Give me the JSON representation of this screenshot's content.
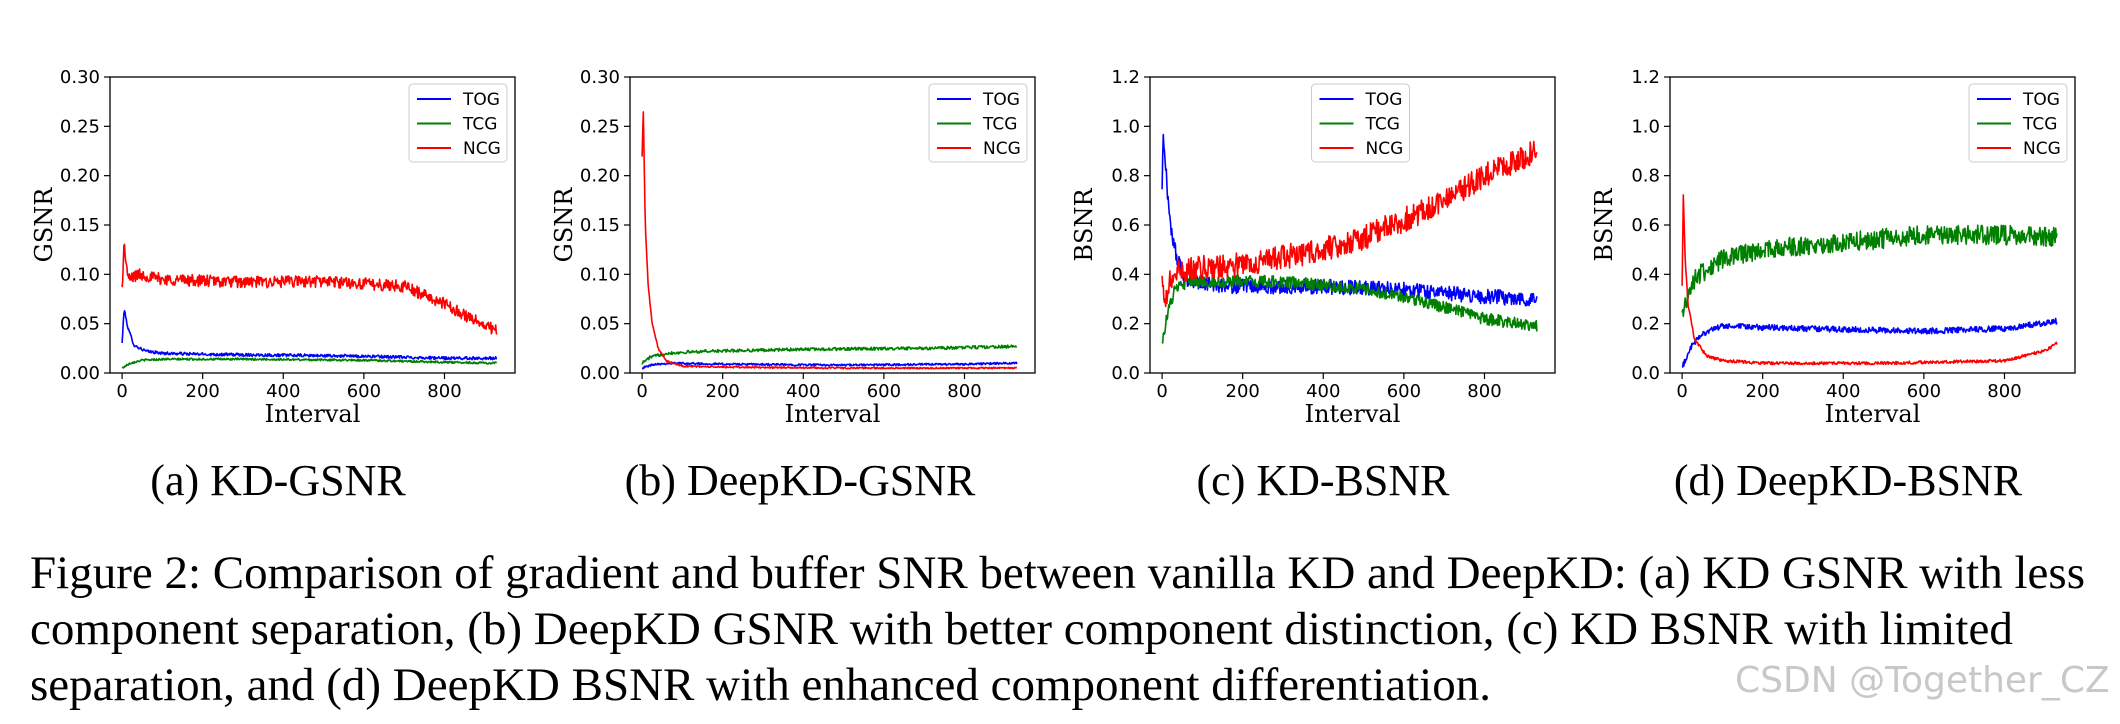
{
  "chart_data": [
    {
      "type": "line",
      "subcaption": "(a) KD-GSNR",
      "xlabel": "Interval",
      "ylabel": "GSNR",
      "xlim": [
        -30,
        975
      ],
      "ylim": [
        0,
        0.3
      ],
      "xticks": [
        0,
        200,
        400,
        600,
        800
      ],
      "xtick_labels": [
        "0",
        "200",
        "400",
        "600",
        "800"
      ],
      "yticks": [
        0,
        0.05,
        0.1,
        0.15,
        0.2,
        0.25,
        0.3
      ],
      "ytick_labels": [
        "0.00",
        "0.05",
        "0.10",
        "0.15",
        "0.20",
        "0.25",
        "0.30"
      ],
      "legend": "upper right",
      "series": [
        {
          "name": "TOG",
          "color": "#0000ff",
          "noise": 0.0015,
          "x": [
            0,
            5,
            15,
            30,
            60,
            100,
            200,
            400,
            600,
            800,
            930
          ],
          "y": [
            0.03,
            0.065,
            0.045,
            0.028,
            0.022,
            0.02,
            0.019,
            0.018,
            0.017,
            0.015,
            0.015
          ]
        },
        {
          "name": "TCG",
          "color": "#008000",
          "noise": 0.001,
          "x": [
            0,
            20,
            50,
            100,
            300,
            600,
            800,
            930
          ],
          "y": [
            0.005,
            0.01,
            0.013,
            0.014,
            0.014,
            0.013,
            0.011,
            0.01
          ]
        },
        {
          "name": "NCG",
          "color": "#ff0000",
          "noise": 0.006,
          "x": [
            0,
            5,
            15,
            40,
            100,
            300,
            500,
            700,
            800,
            900,
            930
          ],
          "y": [
            0.085,
            0.13,
            0.095,
            0.1,
            0.095,
            0.092,
            0.093,
            0.088,
            0.07,
            0.048,
            0.043
          ]
        }
      ]
    },
    {
      "type": "line",
      "subcaption": "(b) DeepKD-GSNR",
      "xlabel": "Interval",
      "ylabel": "GSNR",
      "xlim": [
        -30,
        975
      ],
      "ylim": [
        0,
        0.3
      ],
      "xticks": [
        0,
        200,
        400,
        600,
        800
      ],
      "xtick_labels": [
        "0",
        "200",
        "400",
        "600",
        "800"
      ],
      "yticks": [
        0,
        0.05,
        0.1,
        0.15,
        0.2,
        0.25,
        0.3
      ],
      "ytick_labels": [
        "0.00",
        "0.05",
        "0.10",
        "0.15",
        "0.20",
        "0.25",
        "0.30"
      ],
      "legend": "upper right",
      "series": [
        {
          "name": "TOG",
          "color": "#0000ff",
          "noise": 0.001,
          "x": [
            0,
            30,
            80,
            200,
            500,
            800,
            930
          ],
          "y": [
            0.005,
            0.009,
            0.01,
            0.009,
            0.008,
            0.009,
            0.01
          ]
        },
        {
          "name": "TCG",
          "color": "#008000",
          "noise": 0.0015,
          "x": [
            0,
            20,
            60,
            150,
            400,
            700,
            930
          ],
          "y": [
            0.01,
            0.016,
            0.02,
            0.022,
            0.024,
            0.025,
            0.027
          ]
        },
        {
          "name": "NCG",
          "color": "#ff0000",
          "noise": 0.0008,
          "x": [
            0,
            3,
            8,
            15,
            25,
            40,
            60,
            100,
            200,
            500,
            800,
            930
          ],
          "y": [
            0.22,
            0.265,
            0.15,
            0.09,
            0.05,
            0.025,
            0.012,
            0.007,
            0.006,
            0.005,
            0.005,
            0.005
          ]
        }
      ]
    },
    {
      "type": "line",
      "subcaption": "(c) KD-BSNR",
      "xlabel": "Interval",
      "ylabel": "BSNR",
      "xlim": [
        -30,
        975
      ],
      "ylim": [
        0,
        1.2
      ],
      "xticks": [
        0,
        200,
        400,
        600,
        800
      ],
      "xtick_labels": [
        "0",
        "200",
        "400",
        "600",
        "800"
      ],
      "yticks": [
        0,
        0.2,
        0.4,
        0.6,
        0.8,
        1.0,
        1.2
      ],
      "ytick_labels": [
        "0.0",
        "0.2",
        "0.4",
        "0.6",
        "0.8",
        "1.0",
        "1.2"
      ],
      "legend": "upper center",
      "series": [
        {
          "name": "TOG",
          "color": "#0000ff",
          "noise": 0.03,
          "x": [
            0,
            3,
            8,
            15,
            25,
            40,
            60,
            100,
            200,
            400,
            600,
            800,
            930
          ],
          "y": [
            0.75,
            0.98,
            0.85,
            0.7,
            0.55,
            0.45,
            0.38,
            0.36,
            0.35,
            0.35,
            0.34,
            0.31,
            0.3
          ]
        },
        {
          "name": "TCG",
          "color": "#008000",
          "noise": 0.025,
          "x": [
            0,
            15,
            30,
            60,
            100,
            300,
            500,
            650,
            800,
            930
          ],
          "y": [
            0.13,
            0.25,
            0.33,
            0.37,
            0.37,
            0.37,
            0.34,
            0.29,
            0.22,
            0.19
          ]
        },
        {
          "name": "NCG",
          "color": "#ff0000",
          "noise": 0.05,
          "x": [
            0,
            5,
            15,
            30,
            60,
            200,
            400,
            500,
            600,
            700,
            800,
            900,
            930
          ],
          "y": [
            0.4,
            0.25,
            0.35,
            0.4,
            0.42,
            0.44,
            0.5,
            0.55,
            0.62,
            0.7,
            0.8,
            0.88,
            0.9
          ]
        }
      ]
    },
    {
      "type": "line",
      "subcaption": "(d) DeepKD-BSNR",
      "xlabel": "Interval",
      "ylabel": "BSNR",
      "xlim": [
        -30,
        975
      ],
      "ylim": [
        0,
        1.2
      ],
      "xticks": [
        0,
        200,
        400,
        600,
        800
      ],
      "xtick_labels": [
        "0",
        "200",
        "400",
        "600",
        "800"
      ],
      "yticks": [
        0,
        0.2,
        0.4,
        0.6,
        0.8,
        1.0,
        1.2
      ],
      "ytick_labels": [
        "0.0",
        "0.2",
        "0.4",
        "0.6",
        "0.8",
        "1.0",
        "1.2"
      ],
      "legend": "upper right",
      "series": [
        {
          "name": "TOG",
          "color": "#0000ff",
          "noise": 0.012,
          "x": [
            0,
            20,
            50,
            100,
            300,
            600,
            800,
            930
          ],
          "y": [
            0.02,
            0.1,
            0.16,
            0.19,
            0.18,
            0.17,
            0.18,
            0.21
          ]
        },
        {
          "name": "TCG",
          "color": "#008000",
          "noise": 0.04,
          "x": [
            0,
            10,
            30,
            60,
            100,
            200,
            400,
            600,
            800,
            930
          ],
          "y": [
            0.22,
            0.3,
            0.38,
            0.42,
            0.46,
            0.5,
            0.53,
            0.56,
            0.56,
            0.55
          ]
        },
        {
          "name": "NCG",
          "color": "#ff0000",
          "noise": 0.006,
          "x": [
            0,
            3,
            8,
            15,
            30,
            60,
            100,
            200,
            500,
            800,
            900,
            930
          ],
          "y": [
            0.35,
            0.72,
            0.45,
            0.28,
            0.14,
            0.07,
            0.05,
            0.04,
            0.04,
            0.05,
            0.09,
            0.12
          ]
        }
      ]
    }
  ],
  "caption": "Figure 2: Comparison of gradient and buffer SNR between vanilla KD and DeepKD: (a) KD GSNR with less component separation, (b) DeepKD GSNR with better component distinction, (c) KD BSNR with limited separation, and (d) DeepKD BSNR with enhanced component differentiation.",
  "watermark": "CSDN @Together_CZ"
}
